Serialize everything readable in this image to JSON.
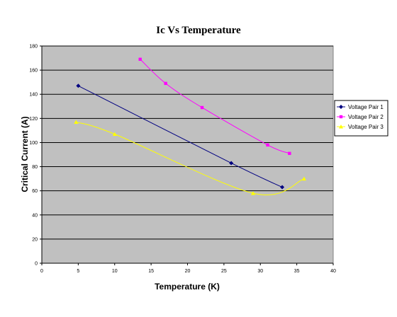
{
  "chart_data": {
    "type": "line",
    "title": "Ic Vs Temperature",
    "xlabel": "Temperature (K)",
    "ylabel": "Critical Current (A)",
    "xlim": [
      0,
      40
    ],
    "ylim": [
      0,
      180
    ],
    "xticks": [
      0,
      5,
      10,
      15,
      20,
      25,
      30,
      35,
      40
    ],
    "yticks": [
      0,
      20,
      40,
      60,
      80,
      100,
      120,
      140,
      160,
      180
    ],
    "grid": "horizontal",
    "plot_background": "#c0c0c0",
    "legend_position": "right",
    "series": [
      {
        "name": "Voltage Pair 1",
        "color": "#000080",
        "marker": "diamond",
        "x": [
          5,
          26,
          33
        ],
        "y": [
          147,
          83,
          63
        ]
      },
      {
        "name": "Voltage Pair 2",
        "color": "#ff00ff",
        "marker": "square",
        "x": [
          13.5,
          17,
          22,
          31,
          34
        ],
        "y": [
          169,
          149,
          129,
          98,
          91
        ]
      },
      {
        "name": "Voltage Pair 3",
        "color": "#ffff00",
        "marker": "triangle",
        "x": [
          4.7,
          10,
          29,
          36
        ],
        "y": [
          117,
          107,
          58,
          70
        ]
      }
    ]
  }
}
